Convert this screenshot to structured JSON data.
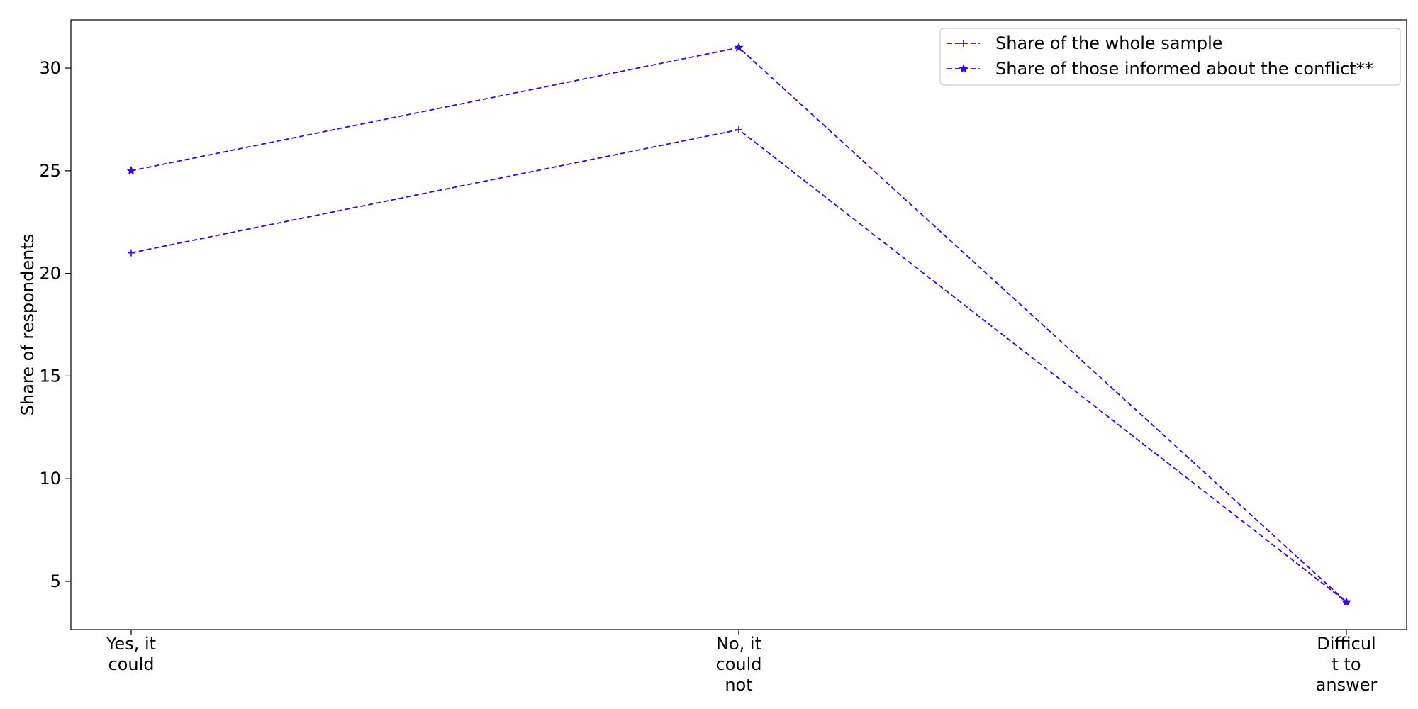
{
  "chart_data": {
    "type": "line",
    "title": "",
    "xlabel": "",
    "ylabel": "Share of respondents",
    "categories": [
      [
        "Yes, it",
        "could"
      ],
      [
        "No, it",
        "could",
        "not"
      ],
      [
        "Difficul",
        "t to",
        "answer"
      ]
    ],
    "yticks": [
      5,
      10,
      15,
      20,
      25,
      30
    ],
    "ylim": [
      2.65,
      32.35
    ],
    "grid": false,
    "legend_position": "top-right",
    "series": [
      {
        "name": "Share of the whole sample",
        "values": [
          21,
          27,
          4
        ],
        "marker": "plus",
        "line_style": "dashed",
        "color": "#3b00e6"
      },
      {
        "name": "Share of those informed about the conflict**",
        "values": [
          25,
          31,
          4
        ],
        "marker": "star",
        "line_style": "dashed",
        "color": "#3b00e6"
      }
    ]
  }
}
